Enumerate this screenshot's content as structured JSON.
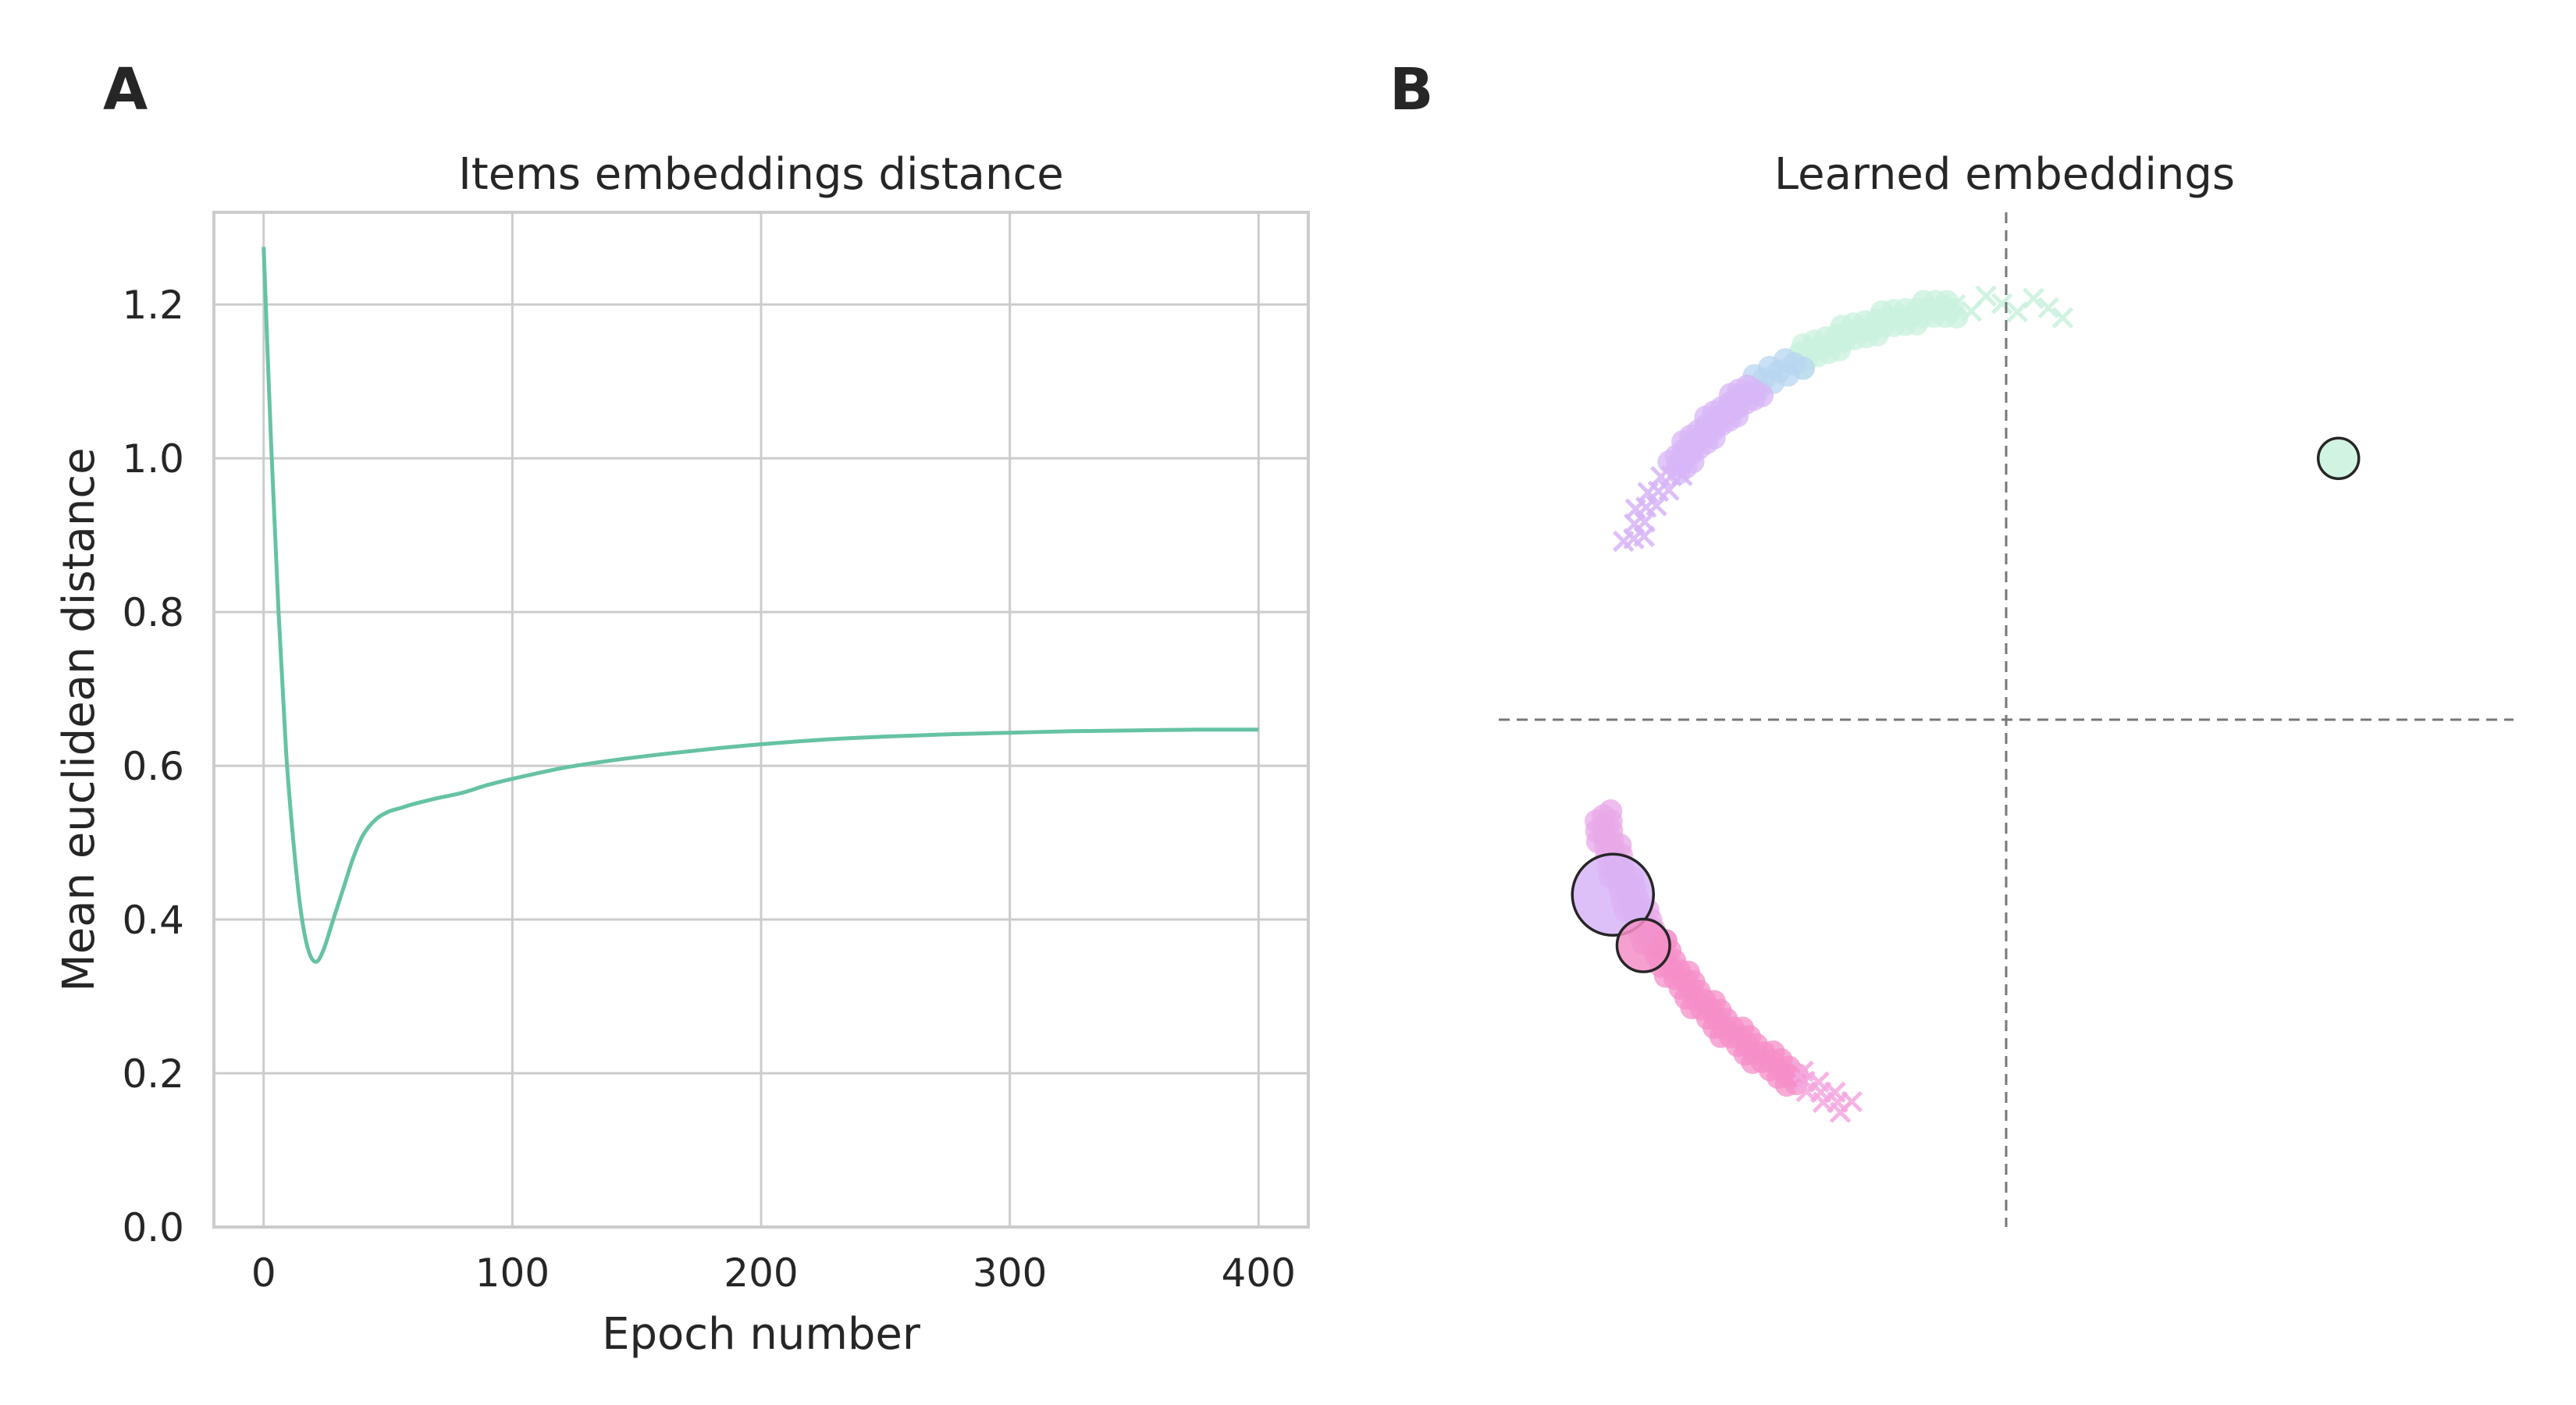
{
  "panels": {
    "a_letter": "A",
    "b_letter": "B"
  },
  "chart_data": [
    {
      "type": "line",
      "title": "Items embeddings distance",
      "xlabel": "Epoch number",
      "ylabel": "Mean euclidean distance",
      "xlim": [
        -20,
        420
      ],
      "ylim": [
        0.0,
        1.32
      ],
      "xticks": [
        "0",
        "100",
        "200",
        "300",
        "400"
      ],
      "xtick_values": [
        0,
        100,
        200,
        300,
        400
      ],
      "yticks": [
        "0.0",
        "0.2",
        "0.4",
        "0.6",
        "0.8",
        "1.0",
        "1.2"
      ],
      "ytick_values": [
        0.0,
        0.2,
        0.4,
        0.6,
        0.8,
        1.0,
        1.2
      ],
      "grid": true,
      "colors": {
        "line": "#66c2a5"
      },
      "series": [
        {
          "x": [
            0,
            3,
            6,
            9,
            12,
            15,
            18,
            21,
            24,
            28,
            32,
            36,
            40,
            45,
            50,
            55,
            60,
            70,
            80,
            90,
            100,
            120,
            140,
            160,
            180,
            200,
            225,
            250,
            275,
            300,
            325,
            350,
            375,
            400
          ],
          "values": [
            1.275,
            1.02,
            0.8,
            0.62,
            0.5,
            0.41,
            0.36,
            0.345,
            0.36,
            0.4,
            0.44,
            0.48,
            0.51,
            0.53,
            0.54,
            0.545,
            0.55,
            0.558,
            0.565,
            0.575,
            0.583,
            0.597,
            0.607,
            0.615,
            0.622,
            0.628,
            0.634,
            0.638,
            0.641,
            0.643,
            0.645,
            0.646,
            0.647,
            0.647
          ]
        }
      ]
    },
    {
      "type": "scatter",
      "title": "Learned embeddings",
      "xlim": [
        -1.0,
        1.0
      ],
      "ylim": [
        -1.0,
        1.0
      ],
      "axes_visible": false,
      "reference_lines": {
        "x": 0,
        "y": 0,
        "style": "dashed"
      },
      "colors": {
        "mint": "#c9f2dd",
        "lavender": "#d8b5f7",
        "pink": "#f58fc8",
        "guide": "#777777",
        "edge": "#262626"
      },
      "series": [
        {
          "kind": "arc",
          "marker": "x",
          "radius": 0.82,
          "angle_range_deg": [
            82,
            97
          ],
          "count": 8,
          "color": "#c9f2dd"
        },
        {
          "kind": "arc",
          "marker": "o",
          "radius": 0.82,
          "angle_range_deg": [
            97,
            120
          ],
          "count": 45,
          "color": "#c9f2dd"
        },
        {
          "kind": "arc",
          "marker": "o",
          "radius": 0.82,
          "angle_range_deg": [
            120,
            127
          ],
          "count": 10,
          "color": "#b8d6f0"
        },
        {
          "kind": "arc",
          "marker": "o",
          "radius": 0.82,
          "angle_range_deg": [
            127,
            143
          ],
          "count": 40,
          "color": "#d8b5f7"
        },
        {
          "kind": "arc",
          "marker": "x",
          "radius": 0.82,
          "angle_range_deg": [
            143,
            155
          ],
          "count": 14,
          "color": "#d8b5f7"
        },
        {
          "kind": "arc",
          "marker": "o",
          "radius": 0.82,
          "angle_range_deg": [
            193,
            213
          ],
          "count": 45,
          "color": "#e8a8e8"
        },
        {
          "kind": "arc",
          "marker": "o",
          "radius": 0.82,
          "angle_range_deg": [
            213,
            240
          ],
          "count": 55,
          "color": "#f58fc8"
        },
        {
          "kind": "arc",
          "marker": "x",
          "radius": 0.82,
          "angle_range_deg": [
            240,
            248
          ],
          "count": 10,
          "color": "#f5a8e0"
        },
        {
          "kind": "point",
          "x": 0.655,
          "y": 0.515,
          "size": 1.0,
          "color": "#c9f2dd"
        },
        {
          "kind": "point",
          "x": -0.775,
          "y": -0.345,
          "size": 2.0,
          "color": "#d8b5f7"
        },
        {
          "kind": "point",
          "x": -0.715,
          "y": -0.445,
          "size": 1.3,
          "color": "#f58fc8"
        }
      ]
    }
  ]
}
